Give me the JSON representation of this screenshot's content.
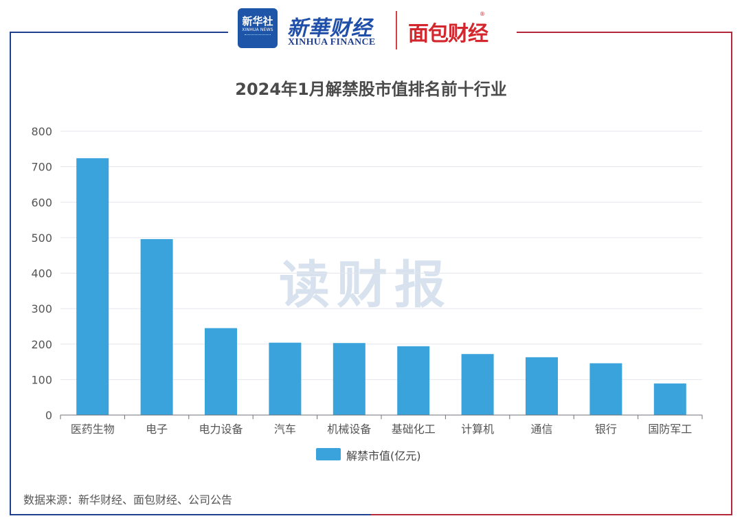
{
  "header": {
    "xinhua_badge_cn": "新华社",
    "xinhua_badge_en": "XINHUA NEWS",
    "xinhua_cn": "新華财经",
    "xinhua_en": "XINHUA FINANCE",
    "mianbao": "面包财经",
    "mianbao_mark": "®"
  },
  "watermark": "读财报",
  "legend": {
    "label": "解禁市值(亿元)",
    "color": "#3ba3dc"
  },
  "source": "数据来源：新华财经、面包财经、公司公告",
  "chart_data": {
    "type": "bar",
    "title": "2024年1月解禁股市值排名前十行业",
    "categories": [
      "医药生物",
      "电子",
      "电力设备",
      "汽车",
      "机械设备",
      "基础化工",
      "计算机",
      "通信",
      "银行",
      "国防军工"
    ],
    "series": [
      {
        "name": "解禁市值(亿元)",
        "values": [
          724,
          496,
          245,
          204,
          203,
          194,
          172,
          163,
          146,
          89
        ]
      }
    ],
    "ylim": [
      0,
      800
    ],
    "yticks": [
      0,
      100,
      200,
      300,
      400,
      500,
      600,
      700,
      800
    ],
    "grid": true,
    "legend_position": "bottom",
    "bar_color": "#3ba3dc"
  }
}
